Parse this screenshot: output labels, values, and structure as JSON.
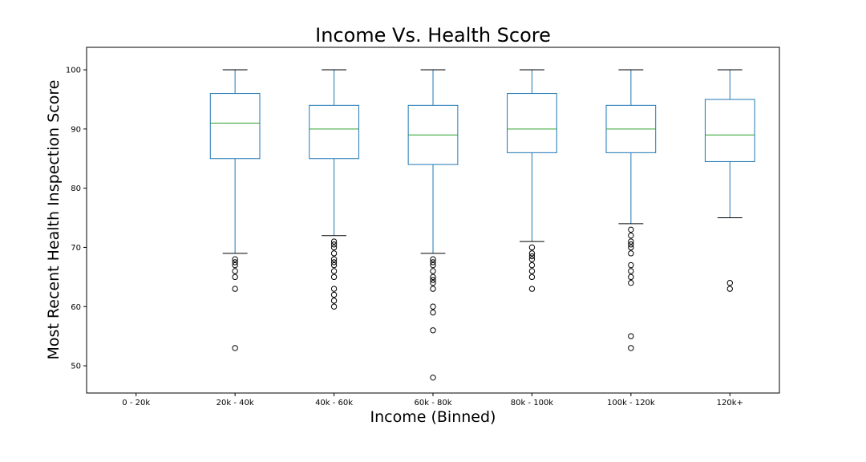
{
  "chart_data": {
    "type": "box",
    "title": "Income Vs. Health Score",
    "xlabel": "Income (Binned)",
    "ylabel": "Most Recent Health Inspection Score",
    "ylim": [
      45.4,
      103.8
    ],
    "yticks": [
      50,
      60,
      70,
      80,
      90,
      100
    ],
    "categories": [
      "0 - 20k",
      "20k - 40k",
      "40k - 60k",
      "60k - 80k",
      "80k - 100k",
      "100k - 120k",
      "120k+"
    ],
    "grid": false,
    "legend": "none",
    "box_color": "#1f77b4",
    "median_color": "#2ca02c",
    "whisker_cap_color": "#000000",
    "boxes": [
      null,
      {
        "whislo": 69,
        "q1": 85,
        "med": 91,
        "q3": 96,
        "whishi": 100,
        "fliers": [
          68,
          67.5,
          67,
          66,
          65,
          63,
          53
        ]
      },
      {
        "whislo": 72,
        "q1": 85,
        "med": 90,
        "q3": 94,
        "whishi": 100,
        "fliers": [
          71,
          70.5,
          70,
          69,
          68,
          67.5,
          67,
          66,
          65,
          63,
          62,
          61,
          60
        ]
      },
      {
        "whislo": 69,
        "q1": 84,
        "med": 89,
        "q3": 94,
        "whishi": 100,
        "fliers": [
          68,
          67.5,
          67,
          66,
          65,
          64.5,
          64,
          63,
          60,
          59,
          56,
          48
        ]
      },
      {
        "whislo": 71,
        "q1": 86,
        "med": 90,
        "q3": 96,
        "whishi": 100,
        "fliers": [
          70,
          69,
          68.5,
          68,
          67,
          66,
          65,
          63
        ]
      },
      {
        "whislo": 74,
        "q1": 86,
        "med": 90,
        "q3": 94,
        "whishi": 100,
        "fliers": [
          73,
          72,
          71,
          70.5,
          70,
          69,
          67,
          66,
          65,
          64,
          55,
          53
        ]
      },
      {
        "whislo": 75,
        "q1": 84.5,
        "med": 89,
        "q3": 95,
        "whishi": 100,
        "fliers": [
          64,
          63
        ]
      }
    ]
  }
}
